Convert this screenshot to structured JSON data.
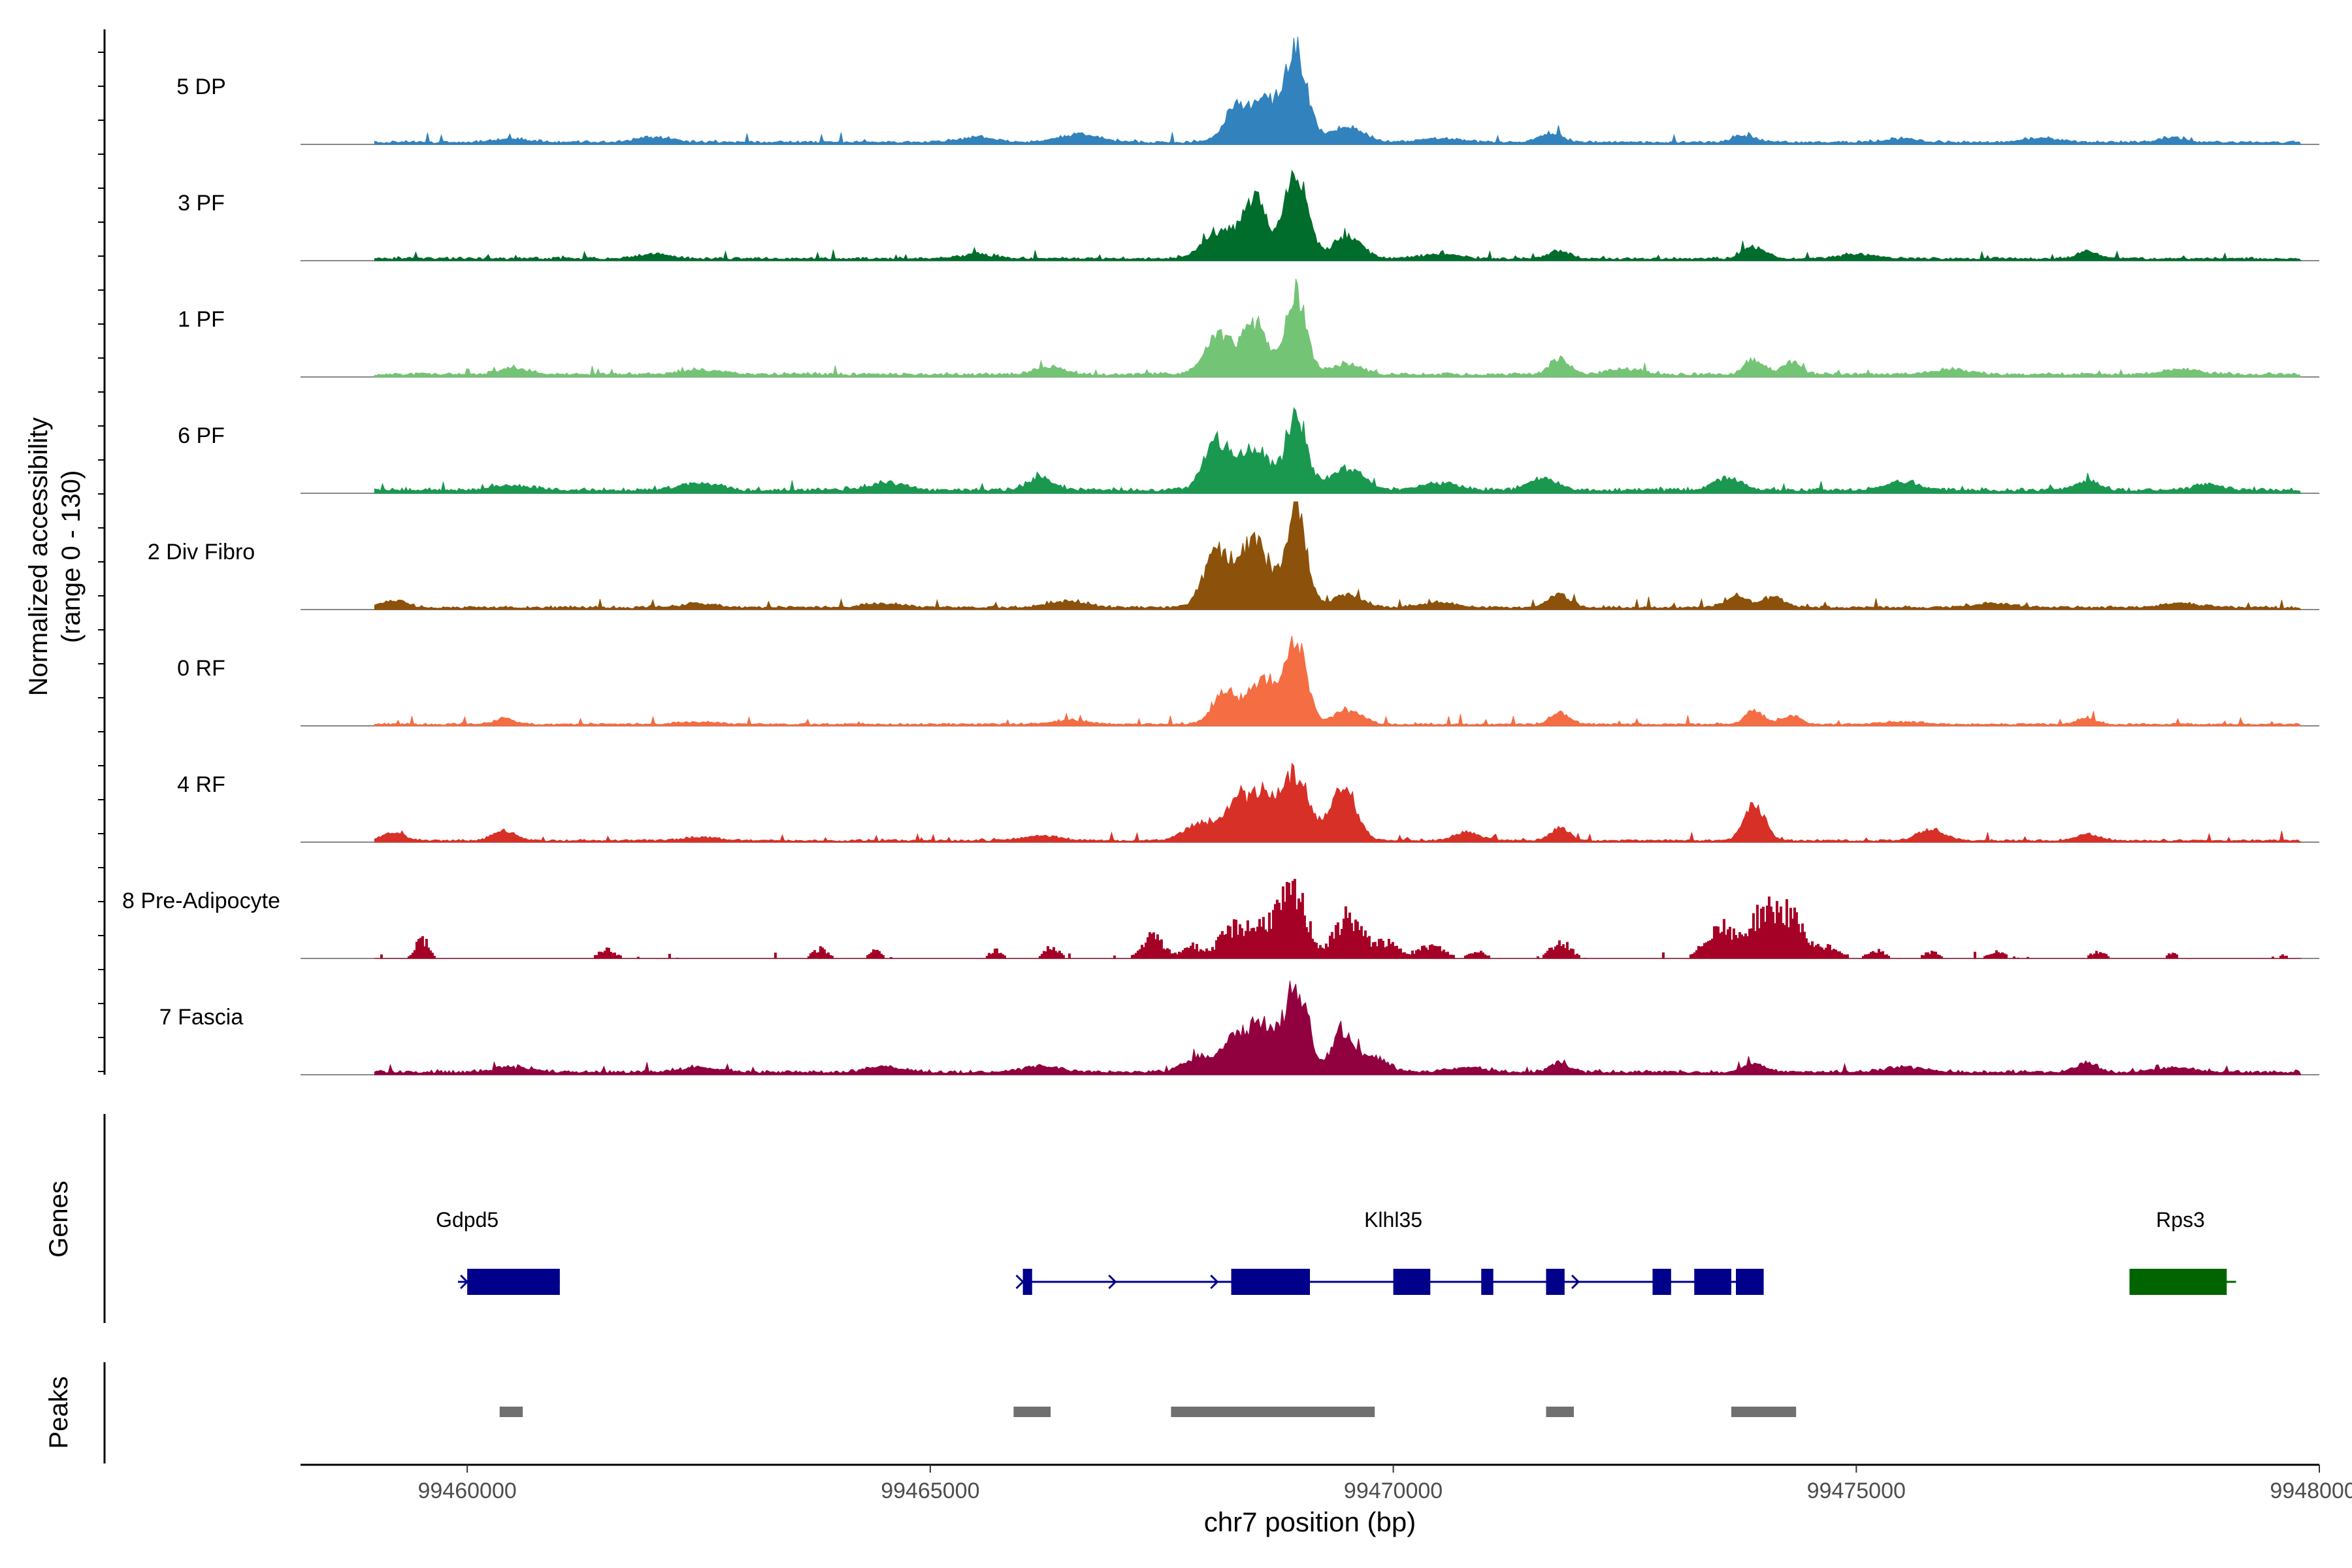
{
  "chart_data": {
    "type": "area",
    "title": "",
    "ylabel_line1": "Normalized accessibility",
    "ylabel_line2": "(range 0 - 130)",
    "xlabel": "chr7 position (bp)",
    "xlim": [
      99458200,
      99480000
    ],
    "ylim": [
      0,
      130
    ],
    "x_ticks": [
      99460000,
      99465000,
      99470000,
      99475000,
      99480000
    ],
    "x_tick_labels": [
      "99460000",
      "99465000",
      "99470000",
      "99475000",
      "99480000"
    ],
    "track_range": [
      99459000,
      99479800
    ],
    "tracks": [
      {
        "name": "5 DP",
        "color": "#3182bd",
        "baseline": 4,
        "smooth": true,
        "peaks": [
          [
            99468300,
            40,
            130
          ],
          [
            99468600,
            52,
            130
          ],
          [
            99468950,
            110,
            120
          ],
          [
            99469500,
            18,
            180
          ],
          [
            99471700,
            12,
            120
          ],
          [
            99473800,
            8,
            120
          ],
          [
            99466600,
            9,
            220
          ],
          [
            99462000,
            6,
            200
          ],
          [
            99477000,
            5,
            200
          ],
          [
            99460500,
            4,
            200
          ],
          [
            99465500,
            6,
            200
          ],
          [
            99470500,
            5,
            200
          ],
          [
            99475500,
            4,
            200
          ],
          [
            99478400,
            6,
            120
          ]
        ]
      },
      {
        "name": "3 PF",
        "color": "#006d2c",
        "baseline": 4,
        "smooth": true,
        "peaks": [
          [
            99468100,
            30,
            160
          ],
          [
            99468500,
            72,
            140
          ],
          [
            99468950,
            108,
            120
          ],
          [
            99469500,
            25,
            160
          ],
          [
            99471800,
            9,
            120
          ],
          [
            99473900,
            14,
            120
          ],
          [
            99477500,
            10,
            100
          ],
          [
            99462000,
            5,
            200
          ],
          [
            99465500,
            5,
            200
          ],
          [
            99470500,
            6,
            200
          ],
          [
            99475000,
            5,
            200
          ]
        ]
      },
      {
        "name": "1 PF",
        "color": "#74c476",
        "baseline": 5,
        "smooth": true,
        "peaks": [
          [
            99468100,
            45,
            140
          ],
          [
            99468500,
            62,
            140
          ],
          [
            99468950,
            100,
            110
          ],
          [
            99469500,
            12,
            160
          ],
          [
            99471800,
            20,
            100
          ],
          [
            99473900,
            18,
            100
          ],
          [
            99474300,
            16,
            100
          ],
          [
            99466300,
            9,
            150
          ],
          [
            99460500,
            8,
            150
          ],
          [
            99462500,
            6,
            200
          ],
          [
            99472500,
            6,
            200
          ],
          [
            99476000,
            6,
            200
          ],
          [
            99478500,
            6,
            200
          ]
        ]
      },
      {
        "name": "6 PF",
        "color": "#1a9850",
        "baseline": 6,
        "smooth": true,
        "peaks": [
          [
            99468100,
            55,
            140
          ],
          [
            99468500,
            50,
            160
          ],
          [
            99468950,
            90,
            110
          ],
          [
            99469500,
            25,
            180
          ],
          [
            99466200,
            14,
            150
          ],
          [
            99471600,
            14,
            150
          ],
          [
            99473600,
            15,
            150
          ],
          [
            99477500,
            12,
            120
          ],
          [
            99462500,
            9,
            200
          ],
          [
            99464500,
            9,
            200
          ],
          [
            99470500,
            9,
            200
          ],
          [
            99475500,
            9,
            200
          ],
          [
            99460500,
            6,
            200
          ],
          [
            99478800,
            8,
            150
          ]
        ]
      },
      {
        "name": "2 Div Fibro",
        "color": "#8c510a",
        "baseline": 4,
        "smooth": true,
        "peaks": [
          [
            99468100,
            65,
            140
          ],
          [
            99468500,
            80,
            160
          ],
          [
            99468950,
            120,
            110
          ],
          [
            99469500,
            15,
            160
          ],
          [
            99471800,
            15,
            120
          ],
          [
            99473700,
            14,
            120
          ],
          [
            99474100,
            12,
            120
          ],
          [
            99459200,
            8,
            150
          ],
          [
            99466500,
            8,
            200
          ],
          [
            99462500,
            5,
            200
          ],
          [
            99464500,
            5,
            200
          ],
          [
            99470500,
            6,
            200
          ],
          [
            99476500,
            5,
            200
          ],
          [
            99478500,
            5,
            200
          ]
        ]
      },
      {
        "name": "0 RF",
        "color": "#f46d43",
        "baseline": 3,
        "smooth": true,
        "peaks": [
          [
            99468200,
            38,
            140
          ],
          [
            99468600,
            55,
            140
          ],
          [
            99468950,
            100,
            110
          ],
          [
            99469500,
            16,
            160
          ],
          [
            99466500,
            5,
            200
          ],
          [
            99471800,
            14,
            100
          ],
          [
            99473900,
            16,
            100
          ],
          [
            99474300,
            10,
            100
          ],
          [
            99477500,
            8,
            100
          ],
          [
            99460400,
            7,
            120
          ],
          [
            99462500,
            3,
            200
          ],
          [
            99475500,
            3,
            200
          ]
        ]
      },
      {
        "name": "4 RF",
        "color": "#d73027",
        "baseline": 3,
        "smooth": true,
        "peaks": [
          [
            99467900,
            20,
            160
          ],
          [
            99468300,
            42,
            140
          ],
          [
            99468600,
            55,
            140
          ],
          [
            99468950,
            78,
            130
          ],
          [
            99469450,
            68,
            140
          ],
          [
            99470800,
            10,
            140
          ],
          [
            99471800,
            15,
            100
          ],
          [
            99473900,
            42,
            110
          ],
          [
            99475800,
            14,
            140
          ],
          [
            99460400,
            12,
            120
          ],
          [
            99459200,
            10,
            120
          ],
          [
            99462500,
            4,
            200
          ],
          [
            99477500,
            8,
            120
          ],
          [
            99466200,
            6,
            200
          ]
        ]
      },
      {
        "name": "8 Pre-Adipocyte",
        "color": "#a50026",
        "baseline": 0,
        "smooth": false,
        "peaks": [
          [
            99459500,
            25,
            70
          ],
          [
            99460400,
            0,
            50
          ],
          [
            99461500,
            12,
            80
          ],
          [
            99463800,
            12,
            80
          ],
          [
            99464400,
            10,
            60
          ],
          [
            99465700,
            10,
            70
          ],
          [
            99466300,
            14,
            80
          ],
          [
            99467400,
            28,
            110
          ],
          [
            99467800,
            16,
            90
          ],
          [
            99468300,
            40,
            180
          ],
          [
            99468700,
            45,
            160
          ],
          [
            99468950,
            68,
            130
          ],
          [
            99469500,
            55,
            140
          ],
          [
            99469900,
            20,
            140
          ],
          [
            99470400,
            16,
            140
          ],
          [
            99470900,
            10,
            80
          ],
          [
            99471800,
            22,
            100
          ],
          [
            99473500,
            40,
            140
          ],
          [
            99474000,
            60,
            180
          ],
          [
            99474300,
            40,
            140
          ],
          [
            99474700,
            14,
            120
          ],
          [
            99475200,
            10,
            90
          ],
          [
            99475800,
            8,
            80
          ],
          [
            99476500,
            8,
            90
          ],
          [
            99477600,
            8,
            80
          ],
          [
            99478400,
            6,
            60
          ],
          [
            99479600,
            4,
            60
          ]
        ]
      },
      {
        "name": "7 Fascia",
        "color": "#91003f",
        "baseline": 5,
        "smooth": true,
        "peaks": [
          [
            99467900,
            18,
            160
          ],
          [
            99468300,
            38,
            140
          ],
          [
            99468600,
            55,
            140
          ],
          [
            99468950,
            100,
            120
          ],
          [
            99469450,
            48,
            120
          ],
          [
            99469800,
            18,
            140
          ],
          [
            99471800,
            12,
            100
          ],
          [
            99473900,
            12,
            100
          ],
          [
            99477500,
            12,
            100
          ],
          [
            99466200,
            8,
            200
          ],
          [
            99460500,
            6,
            200
          ],
          [
            99462500,
            6,
            200
          ],
          [
            99464500,
            6,
            200
          ],
          [
            99470800,
            6,
            200
          ],
          [
            99475500,
            6,
            200
          ],
          [
            99478500,
            5,
            200
          ]
        ]
      }
    ],
    "genes_label": "Genes",
    "genes": [
      {
        "name": "Gdpd5",
        "color": "#00008b",
        "start": 99459900,
        "end": 99461000,
        "label_pos": 99460000,
        "exons": [
          [
            99460000,
            99461000
          ]
        ],
        "arrows": [
          99460000
        ]
      },
      {
        "name": "Klhl35",
        "color": "#00008b",
        "start": 99466000,
        "end": 99473950,
        "label_pos": 99470000,
        "exons": [
          [
            99466000,
            99466100
          ],
          [
            99468250,
            99469100
          ],
          [
            99470000,
            99470400
          ],
          [
            99470950,
            99471080
          ],
          [
            99471650,
            99471850
          ],
          [
            99472800,
            99473000
          ],
          [
            99473250,
            99473650
          ],
          [
            99473700,
            99474000
          ]
        ],
        "arrows": [
          99466000,
          99467000,
          99468100,
          99472000,
          99473000
        ]
      },
      {
        "name": "Rps3",
        "color": "#006400",
        "start": 99477950,
        "end": 99479100,
        "label_pos": 99478500,
        "exons": [
          [
            99477950,
            99479000
          ]
        ],
        "arrows": []
      }
    ],
    "peaks_label": "Peaks",
    "peak_regions": [
      [
        99460350,
        99460600
      ],
      [
        99465900,
        99466300
      ],
      [
        99467600,
        99469800
      ],
      [
        99471650,
        99471950
      ],
      [
        99473650,
        99474350
      ]
    ]
  }
}
